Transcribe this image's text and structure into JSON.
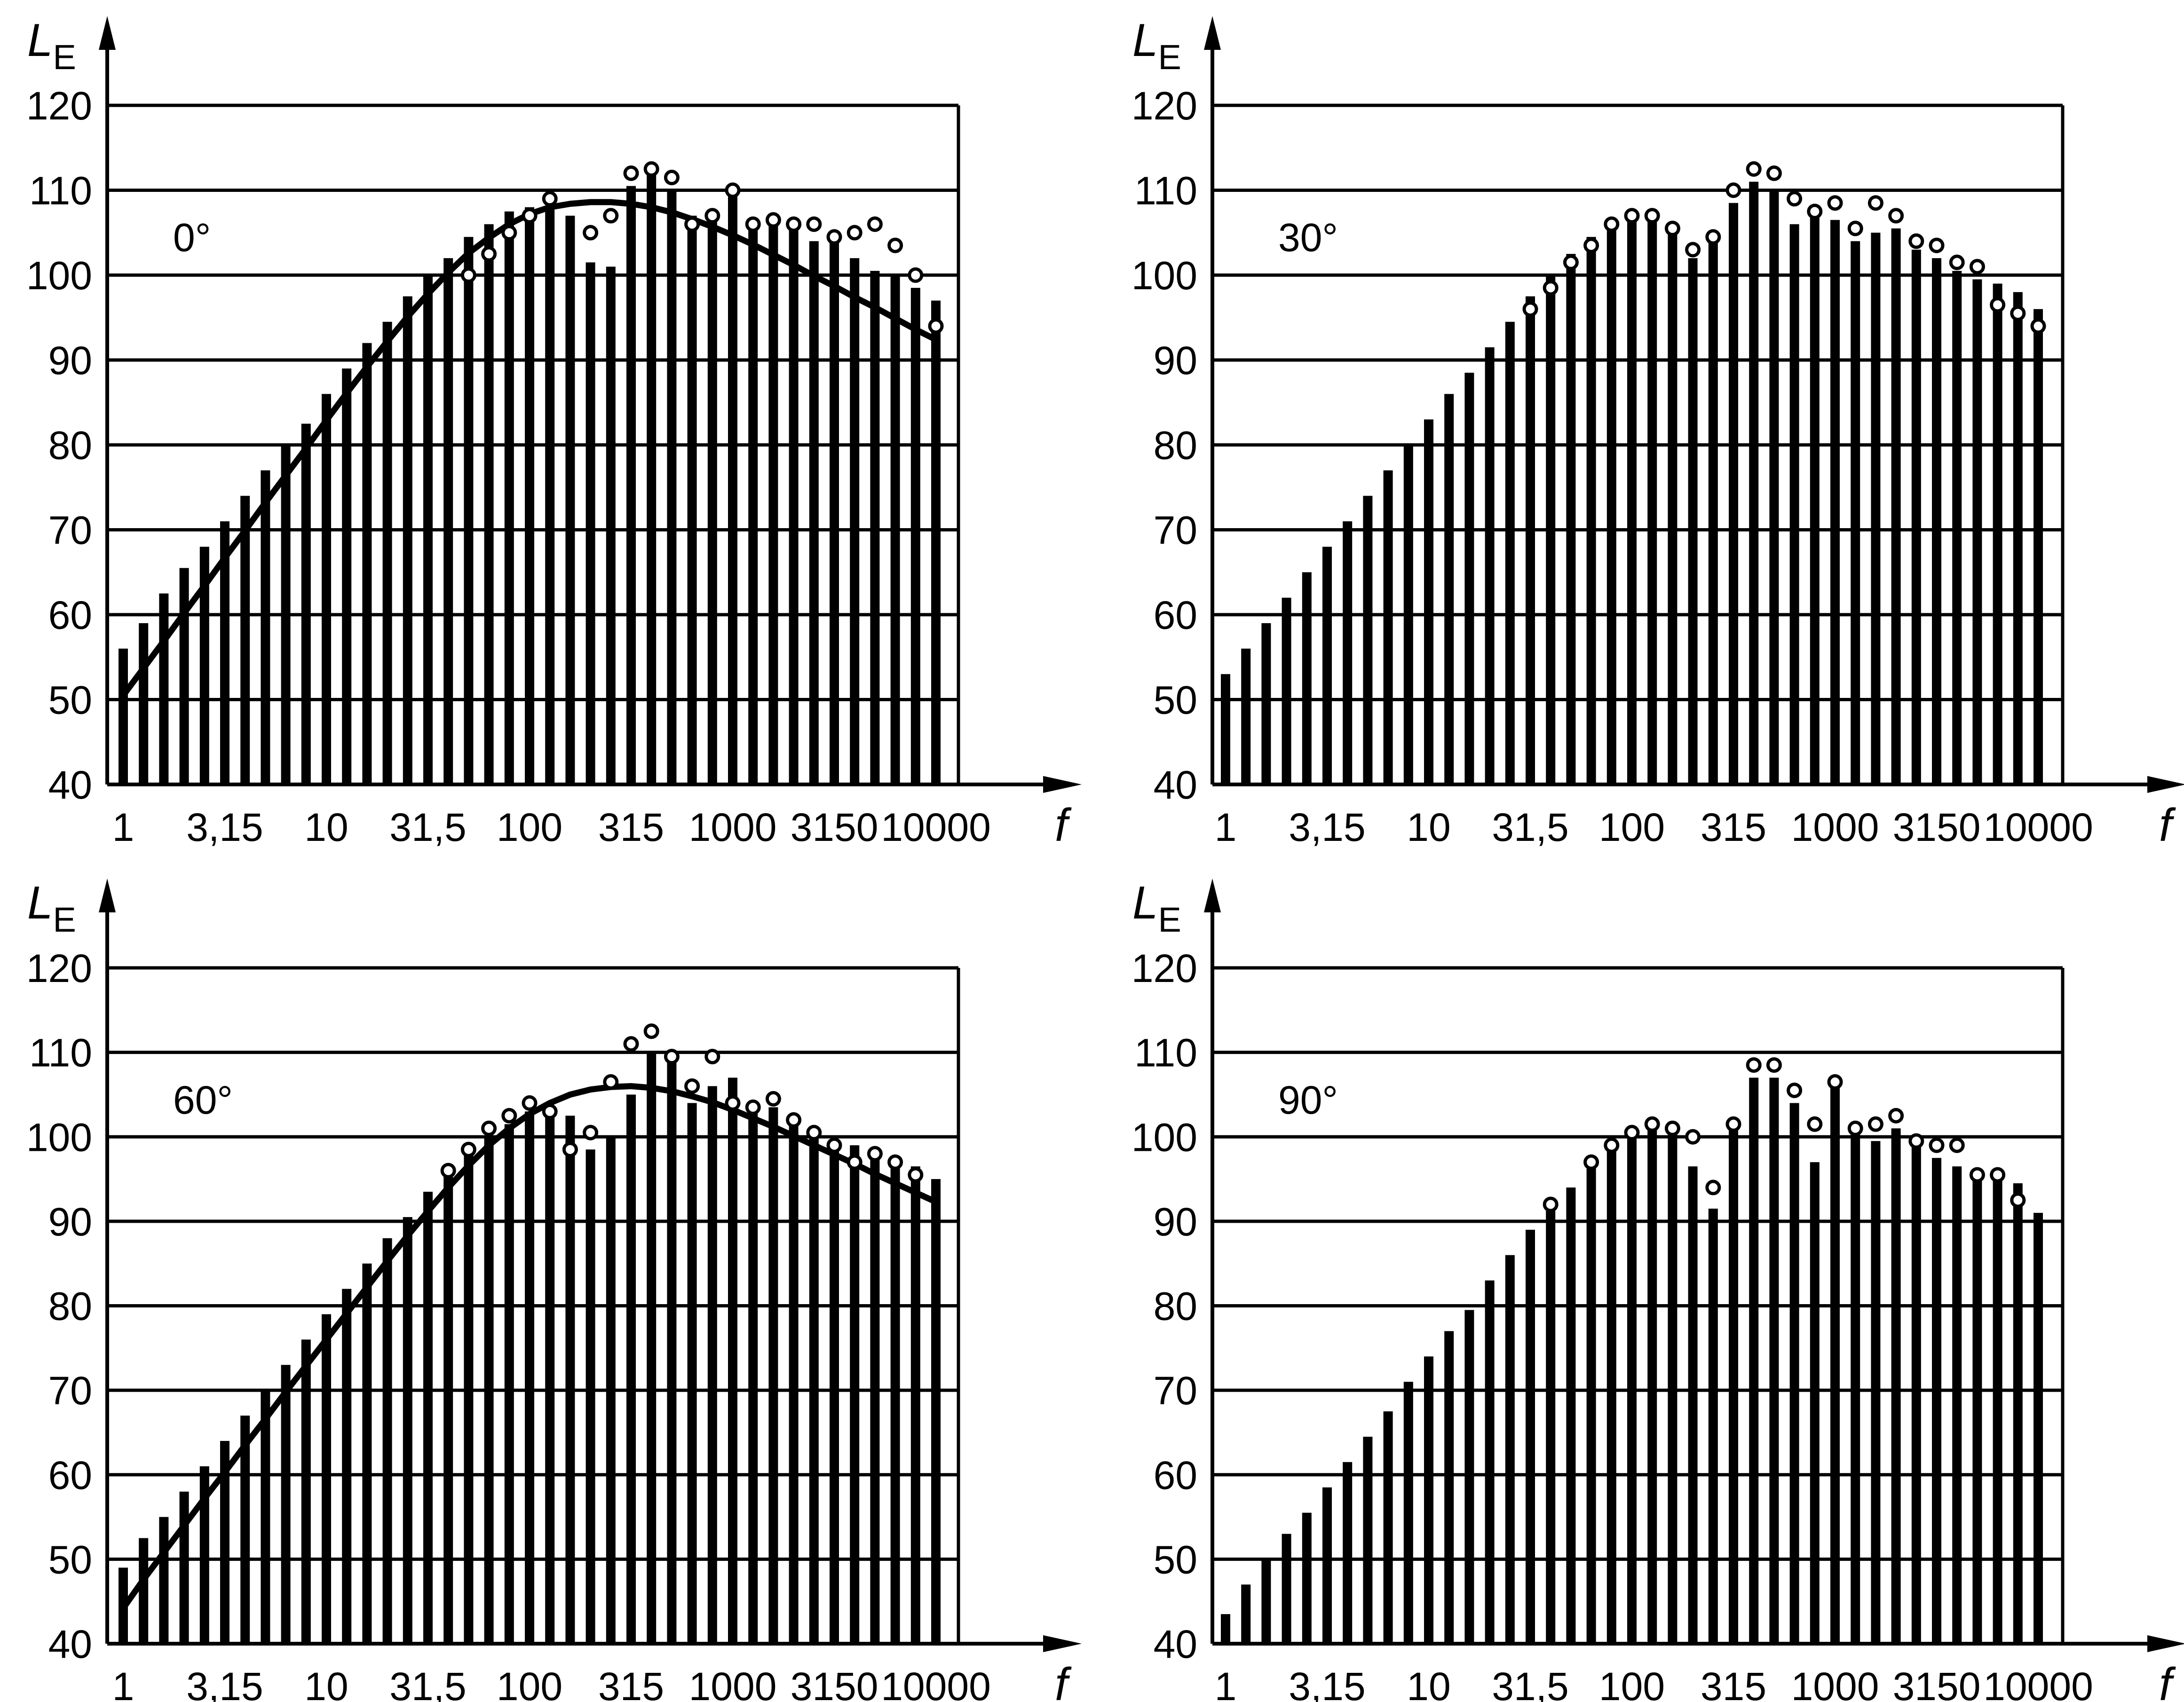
{
  "colors": {
    "ink": "#000000",
    "background": "#ffffff"
  },
  "chart_data": [
    {
      "type": "bar",
      "annotation": "0°",
      "ylabel": "L",
      "ylabel_sub": "E",
      "xlabel": "f",
      "ylim": [
        40,
        120
      ],
      "ytick_labels": [
        "40",
        "50",
        "60",
        "70",
        "80",
        "90",
        "100",
        "110",
        "120"
      ],
      "xtick_labels": [
        "1",
        "3,15",
        "10",
        "31,5",
        "100",
        "315",
        "1000",
        "3150",
        "10000"
      ],
      "grid": true,
      "x_scale": "log (1/3 octave bands)",
      "bars": [
        56,
        59,
        62.5,
        65.5,
        68,
        71,
        74,
        77,
        80,
        82.5,
        86,
        89,
        92,
        94.5,
        97.5,
        100,
        102,
        104.5,
        106,
        107.5,
        108,
        108,
        107,
        101.5,
        101,
        110.5,
        112.5,
        110,
        107,
        107,
        109.5,
        105.5,
        106,
        105.5,
        104,
        104,
        102,
        100.5,
        100,
        98.5,
        97
      ],
      "circles": [
        null,
        null,
        null,
        null,
        null,
        null,
        null,
        null,
        null,
        null,
        null,
        null,
        null,
        null,
        null,
        null,
        null,
        100,
        102.5,
        105,
        107,
        109,
        null,
        105,
        107,
        112,
        112.5,
        111.5,
        106,
        107,
        110,
        106,
        106.5,
        106,
        106,
        104.5,
        105,
        106,
        103.5,
        100,
        94
      ],
      "curve": [
        50.5,
        53.7,
        56.9,
        60.2,
        63.4,
        66.7,
        69.9,
        73.2,
        76.4,
        79.6,
        82.9,
        86.1,
        89.2,
        92.2,
        95.1,
        97.8,
        100.3,
        102.6,
        104.4,
        106,
        107.2,
        108,
        108.4,
        108.6,
        108.6,
        108.4,
        108,
        107.4,
        106.6,
        105.7,
        104.7,
        103.6,
        102.4,
        101.2,
        99.9,
        98.7,
        97.4,
        96.2,
        94.9,
        93.6,
        92.4
      ]
    },
    {
      "type": "bar",
      "annotation": "30°",
      "ylabel": "L",
      "ylabel_sub": "E",
      "xlabel": "f",
      "ylim": [
        40,
        120
      ],
      "ytick_labels": [
        "40",
        "50",
        "60",
        "70",
        "80",
        "90",
        "100",
        "110",
        "120"
      ],
      "xtick_labels": [
        "1",
        "3,15",
        "10",
        "31,5",
        "100",
        "315",
        "1000",
        "3150",
        "10000"
      ],
      "grid": true,
      "x_scale": "log (1/3 octave bands)",
      "bars": [
        53,
        56,
        59,
        62,
        65,
        68,
        71,
        74,
        77,
        80,
        83,
        86,
        88.5,
        91.5,
        94.5,
        97.5,
        100,
        102.5,
        104.5,
        106,
        107,
        107,
        105.5,
        102,
        104,
        108.5,
        111,
        110,
        106,
        107.5,
        106.5,
        104,
        105,
        105.5,
        103,
        102,
        100.5,
        99.5,
        99,
        98,
        96
      ],
      "circles": [
        null,
        null,
        null,
        null,
        null,
        null,
        null,
        null,
        null,
        null,
        null,
        null,
        null,
        null,
        null,
        96,
        98.5,
        101.5,
        103.5,
        106,
        107,
        107,
        105.5,
        103,
        104.5,
        110,
        112.5,
        112,
        109,
        107.5,
        108.5,
        105.5,
        108.5,
        107,
        104,
        103.5,
        101.5,
        101,
        96.5,
        95.5,
        94
      ]
    },
    {
      "type": "bar",
      "annotation": "60°",
      "ylabel": "L",
      "ylabel_sub": "E",
      "xlabel": "f",
      "ylim": [
        40,
        120
      ],
      "ytick_labels": [
        "40",
        "50",
        "60",
        "70",
        "80",
        "90",
        "100",
        "110",
        "120"
      ],
      "xtick_labels": [
        "1",
        "3,15",
        "10",
        "31,5",
        "100",
        "315",
        "1000",
        "3150",
        "10000"
      ],
      "grid": true,
      "x_scale": "log (1/3 octave bands)",
      "bars": [
        49,
        52.5,
        55,
        58,
        61,
        64,
        67,
        70,
        73,
        76,
        79,
        82,
        85,
        88,
        90.5,
        93.5,
        96.5,
        98.5,
        100,
        101.5,
        103,
        103.5,
        102.5,
        98.5,
        100,
        105,
        110,
        110,
        104,
        106,
        107,
        104,
        103.5,
        102.5,
        100.5,
        99.5,
        99,
        97.5,
        97,
        96.5,
        95
      ],
      "circles": [
        null,
        null,
        null,
        null,
        null,
        null,
        null,
        null,
        null,
        null,
        null,
        null,
        null,
        null,
        null,
        null,
        96,
        98.5,
        101,
        102.5,
        104,
        103,
        98.5,
        100.5,
        106.5,
        111,
        112.5,
        109.5,
        106,
        109.5,
        104,
        103.5,
        104.5,
        102,
        100.5,
        99,
        97,
        98,
        97,
        95.5,
        null
      ],
      "curve": [
        44.2,
        47.6,
        50.8,
        54,
        57.2,
        60.3,
        63.5,
        66.6,
        69.8,
        72.9,
        76,
        79.1,
        82.2,
        85.3,
        88.3,
        91.2,
        94,
        96.6,
        99,
        101,
        102.7,
        104,
        105,
        105.6,
        105.9,
        106,
        105.8,
        105.4,
        104.8,
        104.1,
        103.2,
        102.2,
        101.2,
        100.1,
        99,
        97.9,
        96.8,
        95.6,
        94.5,
        93.4,
        92.3
      ]
    },
    {
      "type": "bar",
      "annotation": "90°",
      "ylabel": "L",
      "ylabel_sub": "E",
      "xlabel": "f",
      "ylim": [
        40,
        120
      ],
      "ytick_labels": [
        "40",
        "50",
        "60",
        "70",
        "80",
        "90",
        "100",
        "110",
        "120"
      ],
      "xtick_labels": [
        "1",
        "3,15",
        "10",
        "31,5",
        "100",
        "315",
        "1000",
        "3150",
        "10000"
      ],
      "grid": true,
      "x_scale": "log (1/3 octave bands)",
      "bars": [
        43.5,
        47,
        50,
        53,
        55.5,
        58.5,
        61.5,
        64.5,
        67.5,
        71,
        74,
        77,
        79.5,
        83,
        86,
        89,
        91.5,
        94,
        96.5,
        99,
        100.5,
        101,
        101.5,
        96.5,
        91.5,
        102,
        107,
        107,
        104,
        97,
        106,
        101.5,
        99.5,
        101,
        99.5,
        97.5,
        96.5,
        96,
        95.5,
        94.5,
        91
      ],
      "circles": [
        null,
        null,
        null,
        null,
        null,
        null,
        null,
        null,
        null,
        null,
        null,
        null,
        null,
        null,
        null,
        null,
        92,
        null,
        97,
        99,
        100.5,
        101.5,
        101,
        100,
        94,
        101.5,
        108.5,
        108.5,
        105.5,
        101.5,
        106.5,
        101,
        101.5,
        102.5,
        99.5,
        99,
        99,
        95.5,
        95.5,
        92.5,
        null
      ]
    }
  ]
}
